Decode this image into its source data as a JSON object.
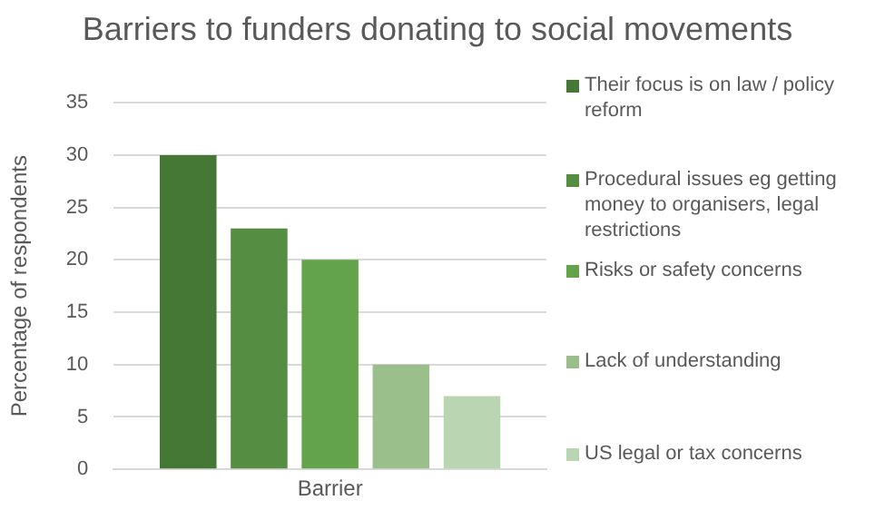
{
  "chart_data": {
    "type": "bar",
    "title": "Barriers to funders donating to social movements",
    "ylabel": "Percentage of respondents",
    "categories": [
      "Barrier"
    ],
    "series": [
      {
        "name": "Their focus is on law / policy reform",
        "color": "#467835",
        "values": [
          30
        ]
      },
      {
        "name": "Procedural issues eg getting money to organisers, legal restrictions",
        "color": "#558e43",
        "values": [
          23
        ]
      },
      {
        "name": "Risks or safety concerns",
        "color": "#62a34c",
        "values": [
          20
        ]
      },
      {
        "name": "Lack of understanding",
        "color": "#9bbf8a",
        "values": [
          10
        ]
      },
      {
        "name": "US legal or tax concerns",
        "color": "#bad5b1",
        "values": [
          7
        ]
      }
    ],
    "ylim": [
      0,
      35
    ],
    "yticks": [
      0,
      5,
      10,
      15,
      20,
      25,
      30,
      35
    ],
    "grid": "y",
    "legend": "right"
  }
}
